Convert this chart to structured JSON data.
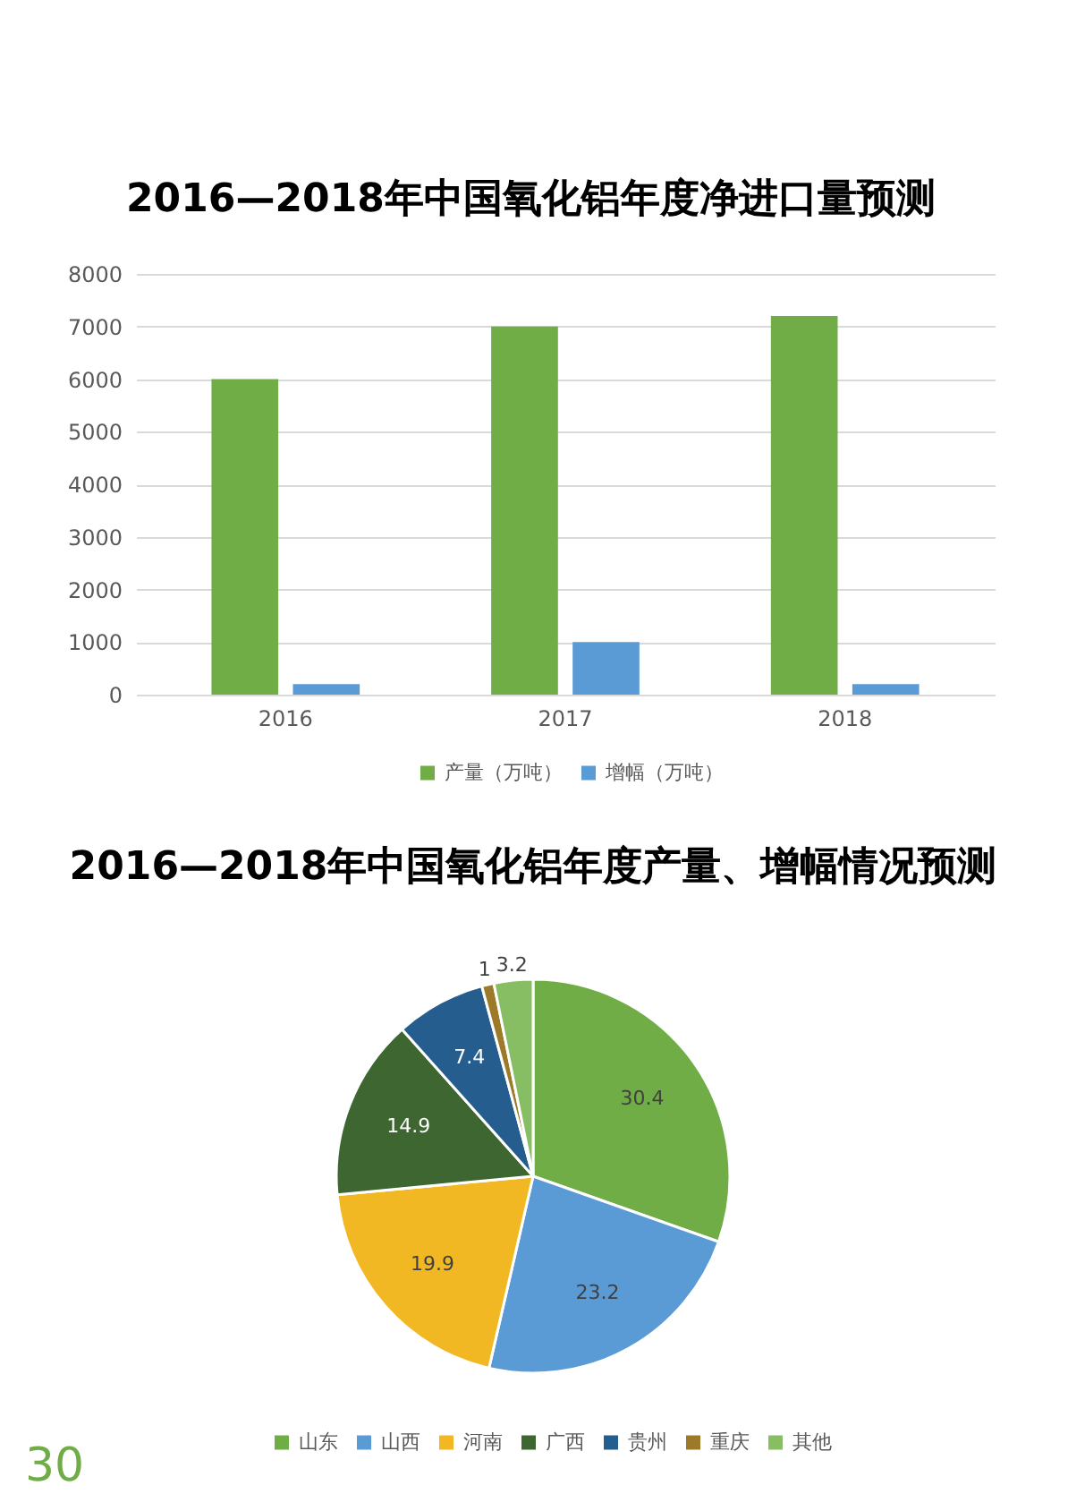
{
  "chart_data": [
    {
      "type": "bar",
      "title": "2016—2018年中国氧化铝年度净进口量预测",
      "categories": [
        "2016",
        "2017",
        "2018"
      ],
      "series": [
        {
          "name": "产量（万吨）",
          "color": "#70ad47",
          "values": [
            6000,
            7000,
            7200
          ]
        },
        {
          "name": "增幅（万吨）",
          "color": "#5b9bd5",
          "values": [
            200,
            1000,
            200
          ]
        }
      ],
      "ylim": [
        0,
        8000
      ],
      "yticks": [
        0,
        1000,
        2000,
        3000,
        4000,
        5000,
        6000,
        7000,
        8000
      ],
      "grid": "y",
      "legend": "bottom"
    },
    {
      "type": "pie",
      "title": "2016—2018年中国氧化铝年度产量、增幅情况预测",
      "categories": [
        "山东",
        "山西",
        "河南",
        "广西",
        "贵州",
        "重庆",
        "其他"
      ],
      "values": [
        30.4,
        23.2,
        19.9,
        14.9,
        7.4,
        1,
        3.2
      ],
      "colors": [
        "#70ad47",
        "#5b9bd5",
        "#f2b824",
        "#3e6631",
        "#265d8f",
        "#9c7a2a",
        "#87bd63"
      ],
      "data_labels": true,
      "legend": "bottom",
      "annotations": [
        "30"
      ]
    }
  ]
}
